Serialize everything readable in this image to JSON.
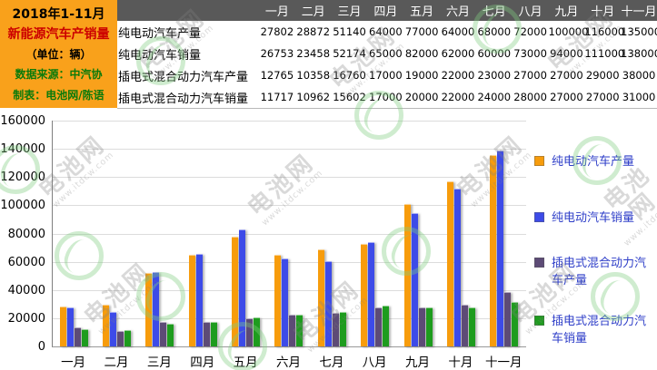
{
  "info": {
    "period": "2018年1-11月",
    "title": "新能源汽车产销量",
    "unit": "（单位：辆）",
    "source": "数据来源：中汽协",
    "author": "制表：电池网/陈语"
  },
  "table": {
    "months": [
      "一月",
      "二月",
      "三月",
      "四月",
      "五月",
      "六月",
      "七月",
      "八月",
      "九月",
      "十月",
      "十一月"
    ],
    "rows": [
      {
        "label": "纯电动汽车产量",
        "values": [
          27802,
          28872,
          51140,
          64000,
          77000,
          64000,
          68000,
          72000,
          100000,
          116000,
          135000
        ]
      },
      {
        "label": "纯电动汽车销量",
        "values": [
          26753,
          23458,
          52174,
          65000,
          82000,
          62000,
          60000,
          73000,
          94000,
          111000,
          138000
        ]
      },
      {
        "label": "插电式混合动力汽车产量",
        "values": [
          12765,
          10358,
          16760,
          17000,
          19000,
          22000,
          23000,
          27000,
          27000,
          29000,
          38000
        ]
      },
      {
        "label": "插电式混合动力汽车销量",
        "values": [
          11717,
          10962,
          15602,
          17000,
          20000,
          22000,
          24000,
          28000,
          27000,
          27000,
          31000
        ]
      }
    ]
  },
  "chart_data": {
    "type": "bar",
    "categories": [
      "一月",
      "二月",
      "三月",
      "四月",
      "五月",
      "六月",
      "七月",
      "八月",
      "九月",
      "十月",
      "十一月"
    ],
    "series": [
      {
        "name": "纯电动汽车产量",
        "color": "#F79C0C",
        "values": [
          27802,
          28872,
          51140,
          64000,
          77000,
          64000,
          68000,
          72000,
          100000,
          116000,
          135000
        ]
      },
      {
        "name": "纯电动汽车销量",
        "color": "#3D4BE8",
        "values": [
          26753,
          23458,
          52174,
          65000,
          82000,
          62000,
          60000,
          73000,
          94000,
          111000,
          138000
        ]
      },
      {
        "name": "插电式混合动力汽车产量",
        "color": "#5D4B76",
        "values": [
          12765,
          10358,
          16760,
          17000,
          19000,
          22000,
          23000,
          27000,
          27000,
          29000,
          38000
        ]
      },
      {
        "name": "插电式混合动力汽车销量",
        "color": "#1E9C1E",
        "values": [
          11717,
          10962,
          15602,
          17000,
          20000,
          22000,
          24000,
          28000,
          27000,
          27000,
          31000
        ]
      }
    ],
    "title": "",
    "xlabel": "",
    "ylabel": "",
    "ylim": [
      0,
      160000
    ],
    "ytick_interval": 20000,
    "grid": true,
    "legend_position": "right"
  },
  "watermark": {
    "brand": "电池网",
    "site": "www.itdcw.com"
  },
  "colors": {
    "info_box_bg": "#F9A11B",
    "info_title_red": "#CC0000",
    "info_source_green": "#0A7A0A",
    "table_header_bg": "#595959",
    "table_header_text": "#FFFFFF",
    "legend_text": "#2E3EC8",
    "gridline": "#DCDCDC"
  }
}
